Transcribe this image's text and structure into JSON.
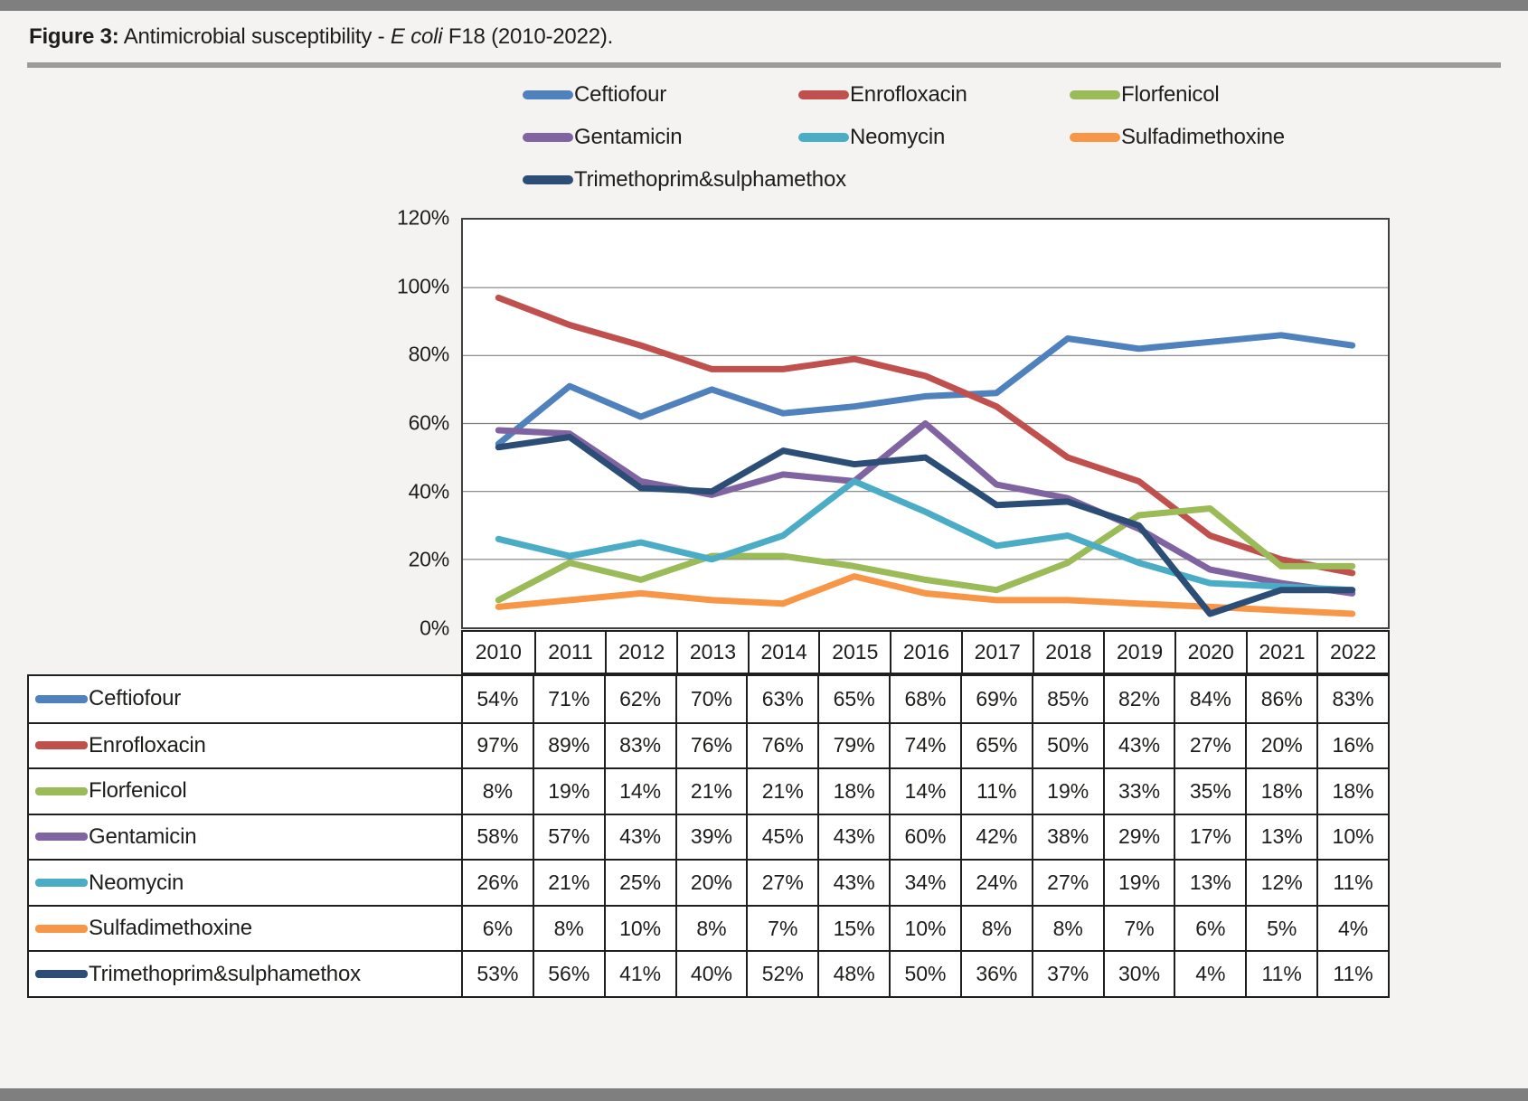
{
  "figure": {
    "label": "Figure 3:",
    "title_pre": " Antimicrobial susceptibility - ",
    "title_italic": "E coli",
    "title_post": " F18 (2010-2022)."
  },
  "axis": {
    "y_ticks": [
      "120%",
      "100%",
      "80%",
      "60%",
      "40%",
      "20%",
      "0%"
    ]
  },
  "chart_data": {
    "type": "line",
    "title": "Antimicrobial susceptibility - E coli F18 (2010-2022)",
    "categories": [
      "2010",
      "2011",
      "2012",
      "2013",
      "2014",
      "2015",
      "2016",
      "2017",
      "2018",
      "2019",
      "2020",
      "2021",
      "2022"
    ],
    "unit": "%",
    "ylim": [
      0,
      120
    ],
    "y_tick_step": 20,
    "grid": true,
    "legend_position": "top",
    "series": [
      {
        "name": "Ceftiofour",
        "color": "#4F81BD",
        "values": [
          54,
          71,
          62,
          70,
          63,
          65,
          68,
          69,
          85,
          82,
          84,
          86,
          83
        ]
      },
      {
        "name": "Enrofloxacin",
        "color": "#C0504D",
        "values": [
          97,
          89,
          83,
          76,
          76,
          79,
          74,
          65,
          50,
          43,
          27,
          20,
          16
        ]
      },
      {
        "name": "Florfenicol",
        "color": "#9BBB59",
        "values": [
          8,
          19,
          14,
          21,
          21,
          18,
          14,
          11,
          19,
          33,
          35,
          18,
          18
        ]
      },
      {
        "name": "Gentamicin",
        "color": "#8064A2",
        "values": [
          58,
          57,
          43,
          39,
          45,
          43,
          60,
          42,
          38,
          29,
          17,
          13,
          10
        ]
      },
      {
        "name": "Neomycin",
        "color": "#4BACC6",
        "values": [
          26,
          21,
          25,
          20,
          27,
          43,
          34,
          24,
          27,
          19,
          13,
          12,
          11
        ]
      },
      {
        "name": "Sulfadimethoxine",
        "color": "#F79646",
        "values": [
          6,
          8,
          10,
          8,
          7,
          15,
          10,
          8,
          8,
          7,
          6,
          5,
          4
        ]
      },
      {
        "name": "Trimethoprim&sulphamethox",
        "color": "#2C4D75",
        "values": [
          53,
          56,
          41,
          40,
          52,
          48,
          50,
          36,
          37,
          30,
          4,
          11,
          11
        ]
      }
    ]
  }
}
